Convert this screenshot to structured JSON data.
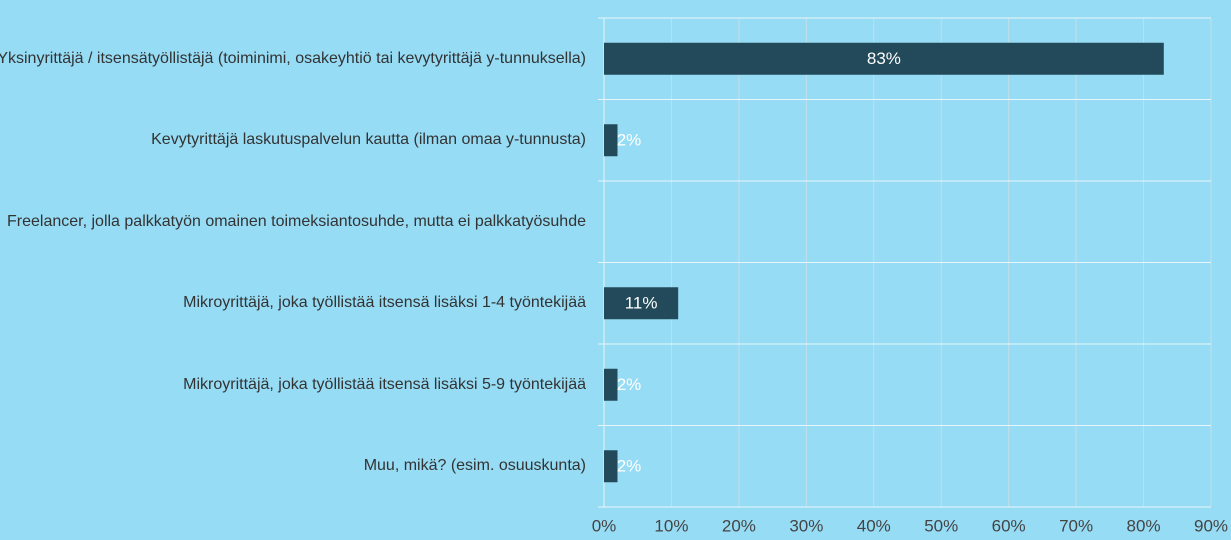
{
  "chart_data": {
    "type": "bar",
    "orientation": "horizontal",
    "categories": [
      "Yksinyrittäjä / itsensätyöllistäjä (toiminimi, osakeyhtiö tai kevytyrittäjä y-tunnuksella)",
      "Kevytyrittäjä laskutuspalvelun kautta (ilman omaa y-tunnusta)",
      "Freelancer, jolla palkkatyön omainen toimeksiantosuhde, mutta ei palkkatyösuhde",
      "Mikroyrittäjä, joka työllistää itsensä lisäksi 1-4 työntekijää",
      "Mikroyrittäjä, joka työllistää itsensä lisäksi 5-9 työntekijää",
      "Muu, mikä? (esim. osuuskunta)"
    ],
    "values": [
      83,
      2,
      null,
      11,
      2,
      2
    ],
    "value_labels": [
      "83%",
      "2%",
      null,
      "11%",
      "2%",
      "2%"
    ],
    "color": "#234a5a",
    "xlim": [
      0,
      90
    ],
    "xticks": [
      {
        "value": 0,
        "label": "0%"
      },
      {
        "value": 10,
        "label": "10%"
      },
      {
        "value": 20,
        "label": "20%"
      },
      {
        "value": 30,
        "label": "30%"
      },
      {
        "value": 40,
        "label": "40%"
      },
      {
        "value": 50,
        "label": "50%"
      },
      {
        "value": 60,
        "label": "60%"
      },
      {
        "value": 70,
        "label": "70%"
      },
      {
        "value": 80,
        "label": "80%"
      },
      {
        "value": 90,
        "label": "90%"
      }
    ],
    "grid": true
  }
}
